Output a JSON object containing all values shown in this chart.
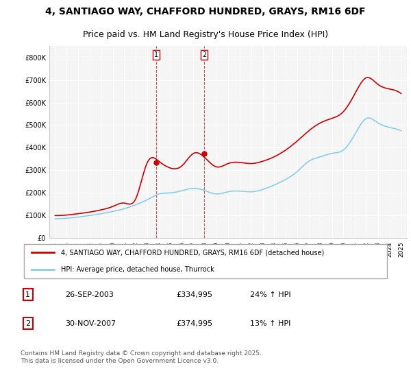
{
  "title_line1": "4, SANTIAGO WAY, CHAFFORD HUNDRED, GRAYS, RM16 6DF",
  "title_line2": "Price paid vs. HM Land Registry's House Price Index (HPI)",
  "ylabel": "",
  "background_color": "#ffffff",
  "plot_bg_color": "#f5f5f5",
  "grid_color": "#ffffff",
  "red_color": "#cc0000",
  "blue_color": "#87CEEB",
  "marker1_date_idx": 8.75,
  "marker2_date_idx": 12.92,
  "marker1_price": 334995,
  "marker2_price": 374995,
  "legend_label1": "4, SANTIAGO WAY, CHAFFORD HUNDRED, GRAYS, RM16 6DF (detached house)",
  "legend_label2": "HPI: Average price, detached house, Thurrock",
  "table_row1": [
    "1",
    "26-SEP-2003",
    "£334,995",
    "24% ↑ HPI"
  ],
  "table_row2": [
    "2",
    "30-NOV-2007",
    "£374,995",
    "13% ↑ HPI"
  ],
  "footer": "Contains HM Land Registry data © Crown copyright and database right 2025.\nThis data is licensed under the Open Government Licence v3.0.",
  "years": [
    1995,
    1996,
    1997,
    1998,
    1999,
    2000,
    2001,
    2002,
    2003,
    2004,
    2005,
    2006,
    2007,
    2008,
    2009,
    2010,
    2011,
    2012,
    2013,
    2014,
    2015,
    2016,
    2017,
    2018,
    2019,
    2020,
    2021,
    2022,
    2023,
    2024,
    2025
  ],
  "red_values": [
    100000,
    102000,
    108000,
    115000,
    125000,
    140000,
    155000,
    175000,
    334995,
    340000,
    310000,
    320000,
    374995,
    355000,
    315000,
    330000,
    335000,
    330000,
    340000,
    360000,
    390000,
    430000,
    475000,
    510000,
    530000,
    560000,
    640000,
    710000,
    680000,
    660000,
    640000
  ],
  "blue_values": [
    85000,
    88000,
    93000,
    100000,
    108000,
    118000,
    130000,
    148000,
    170000,
    195000,
    200000,
    210000,
    220000,
    210000,
    195000,
    205000,
    208000,
    205000,
    215000,
    235000,
    260000,
    295000,
    340000,
    360000,
    375000,
    390000,
    460000,
    530000,
    510000,
    490000,
    475000
  ]
}
